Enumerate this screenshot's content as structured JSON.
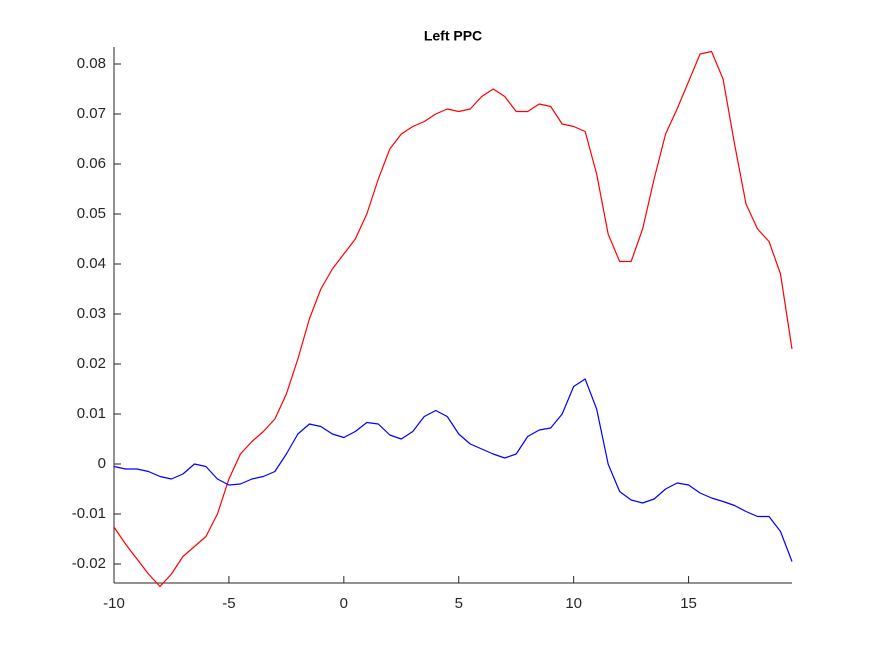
{
  "chart_data": {
    "type": "line",
    "title": "Left PPC",
    "x": [
      -10,
      -9.5,
      -9,
      -8.5,
      -8,
      -7.5,
      -7,
      -6.5,
      -6,
      -5.5,
      -5,
      -4.5,
      -4,
      -3.5,
      -3,
      -2.5,
      -2,
      -1.5,
      -1,
      -0.5,
      0,
      0.5,
      1,
      1.5,
      2,
      2.5,
      3,
      3.5,
      4,
      4.5,
      5,
      5.5,
      6,
      6.5,
      7,
      7.5,
      8,
      8.5,
      9,
      9.5,
      10,
      10.5,
      11,
      11.5,
      12,
      12.5,
      13,
      13.5,
      14,
      14.5,
      15,
      15.5,
      16,
      16.5,
      17,
      17.5,
      18,
      18.5,
      19,
      19.5
    ],
    "series": [
      {
        "color": "#ff0000",
        "values": [
          -0.0126,
          -0.016,
          -0.019,
          -0.022,
          -0.0245,
          -0.022,
          -0.0185,
          -0.0165,
          -0.0145,
          -0.01,
          -0.003,
          0.002,
          0.0045,
          0.0065,
          0.009,
          0.014,
          0.021,
          0.029,
          0.035,
          0.039,
          0.042,
          0.045,
          0.05,
          0.057,
          0.063,
          0.066,
          0.0675,
          0.0685,
          0.07,
          0.071,
          0.0705,
          0.071,
          0.0735,
          0.075,
          0.0735,
          0.0705,
          0.0705,
          0.072,
          0.0715,
          0.068,
          0.0675,
          0.0665,
          0.058,
          0.046,
          0.0405,
          0.0405,
          0.047,
          0.057,
          0.066,
          0.071,
          0.0765,
          0.082,
          0.0825,
          0.077,
          0.064,
          0.052,
          0.047,
          0.0445,
          0.038,
          0.023
        ]
      },
      {
        "color": "#0000ff",
        "values": [
          -0.0005,
          -0.001,
          -0.001,
          -0.0015,
          -0.0025,
          -0.003,
          -0.002,
          0,
          -0.0005,
          -0.003,
          -0.0042,
          -0.004,
          -0.003,
          -0.0025,
          -0.0015,
          0.002,
          0.006,
          0.008,
          0.0075,
          0.006,
          0.0053,
          0.0065,
          0.0083,
          0.008,
          0.0058,
          0.005,
          0.0065,
          0.0095,
          0.0107,
          0.0095,
          0.006,
          0.004,
          0.003,
          0.002,
          0.0012,
          0.002,
          0.0055,
          0.0068,
          0.0072,
          0.01,
          0.0155,
          0.017,
          0.011,
          0,
          -0.0055,
          -0.0072,
          -0.0078,
          -0.007,
          -0.005,
          -0.0038,
          -0.0042,
          -0.0058,
          -0.0068,
          -0.0075,
          -0.0083,
          -0.0095,
          -0.0105,
          -0.0105,
          -0.0135,
          -0.0195
        ]
      }
    ],
    "xlim": [
      -10,
      19.5
    ],
    "ylim": [
      -0.0238,
      0.0834
    ],
    "xticks": [
      -10,
      -5,
      0,
      5,
      10,
      15
    ],
    "yticks": [
      -0.02,
      -0.01,
      0,
      0.01,
      0.02,
      0.03,
      0.04,
      0.05,
      0.06,
      0.07,
      0.08
    ],
    "grid": false
  }
}
